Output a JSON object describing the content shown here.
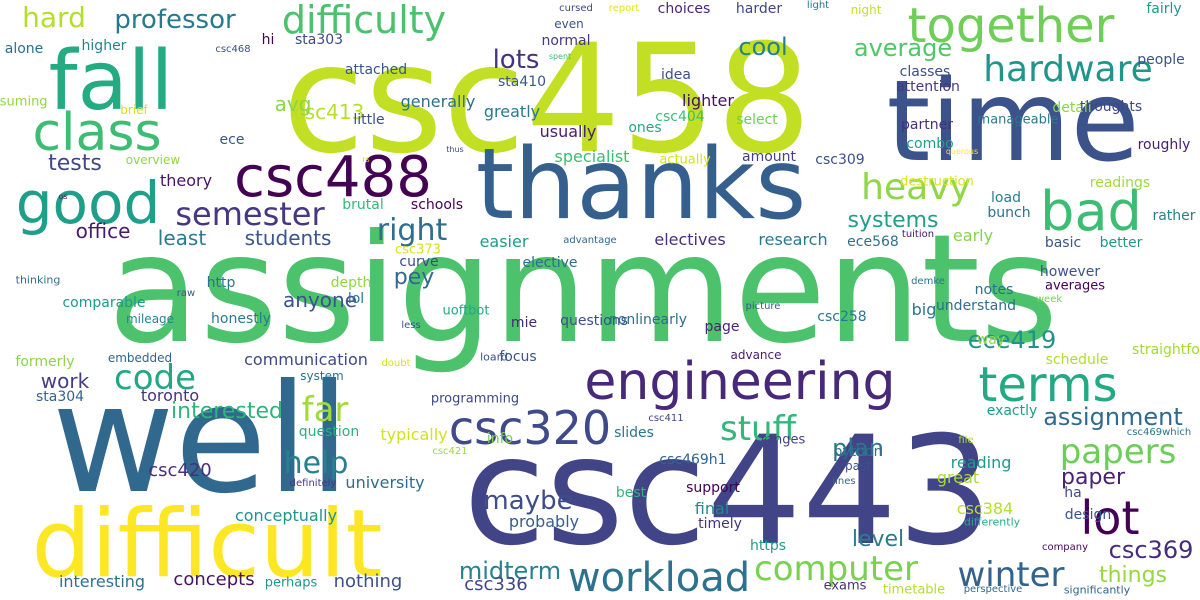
{
  "words": [
    {
      "text": "assignments",
      "color": "#4cc26c"
    },
    {
      "text": "csc458",
      "color": "#c2df23"
    },
    {
      "text": "csc443",
      "color": "#414487"
    },
    {
      "text": "well",
      "color": "#31688e"
    },
    {
      "text": "time",
      "color": "#3b528b"
    },
    {
      "text": "thanks",
      "color": "#355f8d"
    },
    {
      "text": "difficult",
      "color": "#fde725"
    },
    {
      "text": "fall",
      "color": "#25ab82"
    },
    {
      "text": "class",
      "color": "#3dbc74"
    },
    {
      "text": "good",
      "color": "#1f9e89"
    },
    {
      "text": "together",
      "color": "#6ece58"
    },
    {
      "text": "csc488",
      "color": "#440154"
    },
    {
      "text": "bad",
      "color": "#3dbc74"
    },
    {
      "text": "engineering",
      "color": "#482878"
    },
    {
      "text": "terms",
      "color": "#23a983"
    },
    {
      "text": "difficulty",
      "color": "#4ac16d"
    },
    {
      "text": "csc320",
      "color": "#3e4a89"
    },
    {
      "text": "lot",
      "color": "#440154"
    },
    {
      "text": "workload",
      "color": "#2c728e"
    },
    {
      "text": "hardware",
      "color": "#1f968b"
    },
    {
      "text": "heavy",
      "color": "#8fd744"
    },
    {
      "text": "semester",
      "color": "#453781"
    },
    {
      "text": "code",
      "color": "#22a785"
    },
    {
      "text": "stuff",
      "color": "#35b779"
    },
    {
      "text": "papers",
      "color": "#6ccd5a"
    },
    {
      "text": "computer",
      "color": "#7ad151"
    },
    {
      "text": "winter",
      "color": "#33638d"
    },
    {
      "text": "far",
      "color": "#a0da39"
    },
    {
      "text": "help",
      "color": "#27808e"
    },
    {
      "text": "right",
      "color": "#2e6e8e"
    },
    {
      "text": "hard",
      "color": "#b5de2b"
    },
    {
      "text": "professor",
      "color": "#29798e"
    },
    {
      "text": "lots",
      "color": "#46337e"
    },
    {
      "text": "cool",
      "color": "#277f8e"
    },
    {
      "text": "average",
      "color": "#52c569"
    },
    {
      "text": "systems",
      "color": "#1fa088"
    },
    {
      "text": "plan",
      "color": "#2a768e"
    },
    {
      "text": "assignment",
      "color": "#306a8e"
    },
    {
      "text": "csc369",
      "color": "#472c7a"
    },
    {
      "text": "ece419",
      "color": "#20928c"
    },
    {
      "text": "maybe",
      "color": "#3e4c8a"
    },
    {
      "text": "midterm",
      "color": "#26828e"
    },
    {
      "text": "students",
      "color": "#3a548c"
    },
    {
      "text": "office",
      "color": "#481a6c"
    },
    {
      "text": "least",
      "color": "#297b8e"
    },
    {
      "text": "tests",
      "color": "#3f4788"
    },
    {
      "text": "work",
      "color": "#433d84"
    },
    {
      "text": "level",
      "color": "#287d8e"
    },
    {
      "text": "paper",
      "color": "#482173"
    },
    {
      "text": "things",
      "color": "#95d840"
    },
    {
      "text": "interested",
      "color": "#2fb47c"
    },
    {
      "text": "anyone",
      "color": "#3b528b"
    },
    {
      "text": "csc413",
      "color": "#b8de29"
    },
    {
      "text": "avg",
      "color": "#8bd646"
    },
    {
      "text": "pey",
      "color": "#31688e"
    },
    {
      "text": "nothing",
      "color": "#3c508b"
    },
    {
      "text": "concepts",
      "color": "#471365"
    },
    {
      "text": "interesting",
      "color": "#2d718e"
    },
    {
      "text": "conceptually",
      "color": "#20938c"
    },
    {
      "text": "csc420",
      "color": "#46307e"
    },
    {
      "text": "csc336",
      "color": "#404588"
    },
    {
      "text": "typically",
      "color": "#d2e21b"
    },
    {
      "text": "university",
      "color": "#2e6d8e"
    },
    {
      "text": "communication",
      "color": "#3f4889"
    },
    {
      "text": "toronto",
      "color": "#46327e"
    },
    {
      "text": "reading",
      "color": "#1f9a8a"
    },
    {
      "text": "great",
      "color": "#a8db34"
    },
    {
      "text": "csc384",
      "color": "#b5de2b"
    },
    {
      "text": "final",
      "color": "#238a8d"
    },
    {
      "text": "probably",
      "color": "#365d8d"
    },
    {
      "text": "electives",
      "color": "#472f7d"
    },
    {
      "text": "research",
      "color": "#2a778e"
    },
    {
      "text": "easier",
      "color": "#1e9b8a"
    },
    {
      "text": "theory",
      "color": "#481467"
    },
    {
      "text": "early",
      "color": "#84d44b"
    },
    {
      "text": "ece568",
      "color": "#2d718e"
    },
    {
      "text": "specialist",
      "color": "#3dbc74"
    },
    {
      "text": "csc404",
      "color": "#3dbc74"
    },
    {
      "text": "usually",
      "color": "#482071"
    },
    {
      "text": "little",
      "color": "#3e4c8a"
    },
    {
      "text": "greatly",
      "color": "#2a788e"
    },
    {
      "text": "generally",
      "color": "#2e6e8e"
    },
    {
      "text": "lighter",
      "color": "#471063"
    },
    {
      "text": "idea",
      "color": "#3d4e8a"
    },
    {
      "text": "classes",
      "color": "#3c4f8a"
    },
    {
      "text": "attention",
      "color": "#453882"
    },
    {
      "text": "detail",
      "color": "#89d548"
    },
    {
      "text": "thoughts",
      "color": "#404688"
    },
    {
      "text": "higher",
      "color": "#25848e"
    },
    {
      "text": "alone",
      "color": "#2d708e"
    },
    {
      "text": "ece",
      "color": "#3a548c"
    },
    {
      "text": "overview",
      "color": "#90d743"
    },
    {
      "text": "brief",
      "color": "#d8e219"
    },
    {
      "text": "consuming",
      "color": "#93d741"
    },
    {
      "text": "hi",
      "color": "#440154"
    },
    {
      "text": "sta303",
      "color": "#3e4989"
    },
    {
      "text": "attached",
      "color": "#39558c"
    },
    {
      "text": "normal",
      "color": "#453882"
    },
    {
      "text": "choices",
      "color": "#482475"
    },
    {
      "text": "harder",
      "color": "#404688"
    },
    {
      "text": "sta410",
      "color": "#38588c"
    },
    {
      "text": "ones",
      "color": "#22a785"
    },
    {
      "text": "select",
      "color": "#70cf57"
    },
    {
      "text": "partner",
      "color": "#46307e"
    },
    {
      "text": "combo",
      "color": "#1fa088"
    },
    {
      "text": "amount",
      "color": "#414287"
    },
    {
      "text": "csc309",
      "color": "#3c4f8a"
    },
    {
      "text": "actually",
      "color": "#d5e21a"
    },
    {
      "text": "people",
      "color": "#3b528b"
    },
    {
      "text": "fairly",
      "color": "#1f9a8a"
    },
    {
      "text": "roughly",
      "color": "#482071"
    },
    {
      "text": "readings",
      "color": "#9fda3a"
    },
    {
      "text": "destruction",
      "color": "#dde318"
    },
    {
      "text": "load",
      "color": "#277f8e"
    },
    {
      "text": "bunch",
      "color": "#2d718e"
    },
    {
      "text": "basic",
      "color": "#39568c"
    },
    {
      "text": "better",
      "color": "#1f968b"
    },
    {
      "text": "rather",
      "color": "#27808e"
    },
    {
      "text": "straightforward",
      "color": "#a2da37"
    },
    {
      "text": "manageable",
      "color": "#2a778e"
    },
    {
      "text": "understand",
      "color": "#2e6e8e"
    },
    {
      "text": "notes",
      "color": "#2d708e"
    },
    {
      "text": "way",
      "color": "#95d840"
    },
    {
      "text": "big",
      "color": "#2b758e"
    },
    {
      "text": "however",
      "color": "#3b528b"
    },
    {
      "text": "averages",
      "color": "#440154"
    },
    {
      "text": "schedule",
      "color": "#b0dd2f"
    },
    {
      "text": "exactly",
      "color": "#1e9b8a"
    },
    {
      "text": "design",
      "color": "#39558c"
    },
    {
      "text": "ha",
      "color": "#3e4a89"
    },
    {
      "text": "csc258",
      "color": "#29798e"
    },
    {
      "text": "page",
      "color": "#482475"
    },
    {
      "text": "questions",
      "color": "#3d4e8a"
    },
    {
      "text": "nonlinearly",
      "color": "#2f6c8e"
    },
    {
      "text": "elective",
      "color": "#2f6c8e"
    },
    {
      "text": "focus",
      "color": "#3a548c"
    },
    {
      "text": "info",
      "color": "#7ad151"
    },
    {
      "text": "slides",
      "color": "#2c728e"
    },
    {
      "text": "mie",
      "color": "#482677"
    },
    {
      "text": "uoftbot",
      "color": "#23a983"
    },
    {
      "text": "programming",
      "color": "#3f4788"
    },
    {
      "text": "best",
      "color": "#31b57b"
    },
    {
      "text": "support",
      "color": "#440154"
    },
    {
      "text": "https",
      "color": "#1f9a8a"
    },
    {
      "text": "timely",
      "color": "#45337d"
    },
    {
      "text": "python",
      "color": "#2c728e"
    },
    {
      "text": "ranges",
      "color": "#414287"
    },
    {
      "text": "csc469h1",
      "color": "#33638d"
    },
    {
      "text": "past",
      "color": "#3a548c"
    },
    {
      "text": "exams",
      "color": "#46307e"
    },
    {
      "text": "timetable",
      "color": "#b5de2b"
    },
    {
      "text": "differently",
      "color": "#25ac82"
    },
    {
      "text": "perspective",
      "color": "#31688e"
    },
    {
      "text": "significantly",
      "color": "#32648e"
    },
    {
      "text": "company",
      "color": "#46085c"
    },
    {
      "text": "csc469which",
      "color": "#2c728e"
    },
    {
      "text": "lines",
      "color": "#31688e"
    },
    {
      "text": "file",
      "color": "#b0dd2f"
    },
    {
      "text": "demke",
      "color": "#2c728e"
    },
    {
      "text": "tuition",
      "color": "#471365"
    },
    {
      "text": "week",
      "color": "#74d055"
    },
    {
      "text": "advantage",
      "color": "#31688e"
    },
    {
      "text": "picture",
      "color": "#365c8d"
    },
    {
      "text": "advance",
      "color": "#481b6d"
    },
    {
      "text": "loard",
      "color": "#3a548c"
    },
    {
      "text": "doubt",
      "color": "#d8e219"
    },
    {
      "text": "less",
      "color": "#39558c"
    },
    {
      "text": "csc411",
      "color": "#3f4788"
    },
    {
      "text": "csc421",
      "color": "#a0da39"
    },
    {
      "text": "definitely",
      "color": "#453781"
    },
    {
      "text": "system",
      "color": "#2d708e"
    },
    {
      "text": "sta304",
      "color": "#33638d"
    },
    {
      "text": "formerly",
      "color": "#8bd646"
    },
    {
      "text": "embedded",
      "color": "#33638d"
    },
    {
      "text": "mileage",
      "color": "#25848e"
    },
    {
      "text": "raw",
      "color": "#38588c"
    },
    {
      "text": "thinking",
      "color": "#2a768e"
    },
    {
      "text": "comparable",
      "color": "#1f988b"
    },
    {
      "text": "honestly",
      "color": "#29798e"
    },
    {
      "text": "depth",
      "color": "#8fd744"
    },
    {
      "text": "lol",
      "color": "#29798e"
    },
    {
      "text": "curve",
      "color": "#3f4788"
    },
    {
      "text": "csc373",
      "color": "#d8e219"
    },
    {
      "text": "brutal",
      "color": "#35b779"
    },
    {
      "text": "schools",
      "color": "#440154"
    },
    {
      "text": "http",
      "color": "#2c728e"
    },
    {
      "text": "perhaps",
      "color": "#1f978b"
    },
    {
      "text": "question",
      "color": "#29af7f"
    },
    {
      "text": "csc468",
      "color": "#3d4e8a"
    },
    {
      "text": "cursed",
      "color": "#414487"
    },
    {
      "text": "even",
      "color": "#3b528b"
    },
    {
      "text": "report",
      "color": "#e5e419"
    },
    {
      "text": "light",
      "color": "#2a788e"
    },
    {
      "text": "night",
      "color": "#c8e020"
    },
    {
      "text": "spent",
      "color": "#3dbc74"
    },
    {
      "text": "thus",
      "color": "#3f4889"
    },
    {
      "text": "querous",
      "color": "#fde725"
    },
    {
      "text": "os",
      "color": "#482475"
    },
    {
      "text": "rs",
      "color": "#d5e21a"
    }
  ]
}
